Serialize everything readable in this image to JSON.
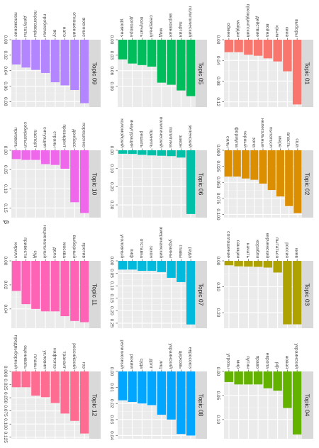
{
  "chart_data": {
    "type": "bar",
    "layout": "faceted-grid",
    "rotation": "rotated-90-clockwise",
    "grid": true,
    "y_axis_label": "β",
    "panels": [
      {
        "title": "Topic 01",
        "color": "#F8766D",
        "ylim": [
          0,
          0.13
        ],
        "ticks": [
          0.0,
          0.04,
          0.08,
          0.12
        ],
        "categories": [
          "выборы",
          "киев",
          "крым",
          "война",
          "действие",
          "президентский",
          "майдан",
          "обмен"
        ],
        "values": [
          0.125,
          0.061,
          0.042,
          0.036,
          0.031,
          0.029,
          0.024,
          0.024
        ]
      },
      {
        "title": "Topic 02",
        "color": "#DB8E00",
        "ylim": [
          0,
          0.105
        ],
        "ticks": [
          0.0,
          0.025,
          0.05,
          0.075,
          0.1
        ],
        "categories": [
          "сша",
          "власть",
          "мере",
          "пытаться",
          "нелегальные",
          "зона",
          "черный",
          "формула",
          "силы"
        ],
        "values": [
          0.098,
          0.087,
          0.072,
          0.062,
          0.052,
          0.046,
          0.044,
          0.041,
          0.041
        ]
      },
      {
        "title": "Topic 03",
        "color": "#AEA200",
        "ylim": [
          0,
          0.26
        ],
        "ticks": [
          0.0,
          0.1,
          0.2
        ],
        "categories": [
          "киев",
          "россия",
          "пытаться",
          "керченский",
          "корабли",
          "начать",
          "санкции",
          "соглашение"
        ],
        "values": [
          0.245,
          0.245,
          0.045,
          0.026,
          0.023,
          0.022,
          0.021,
          0.017
        ]
      },
      {
        "title": "Topic 04",
        "color": "#64B200",
        "ylim": [
          0,
          0.14
        ],
        "ticks": [
          0.0,
          0.05,
          0.1
        ],
        "categories": [
          "украинский",
          "новая",
          "рф",
          "европа",
          "право",
          "путин",
          "мир",
          "угрозы"
        ],
        "values": [
          0.131,
          0.076,
          0.04,
          0.035,
          0.027,
          0.027,
          0.027,
          0.022
        ]
      },
      {
        "title": "Topic 05",
        "color": "#00BD5C",
        "ylim": [
          0,
          0.13
        ],
        "ticks": [
          0.0,
          0.03,
          0.06,
          0.09
        ],
        "categories": [
          "политический",
          "партия",
          "верховная",
          "мид",
          "северный",
          "получать",
          "договора",
          "уровень"
        ],
        "values": [
          0.109,
          0.098,
          0.087,
          0.083,
          0.052,
          0.049,
          0.046,
          0.038
        ]
      },
      {
        "title": "Topic 06",
        "color": "#00C1A7",
        "ylim": [
          0,
          0.37
        ],
        "ticks": [
          0.0,
          0.1,
          0.2,
          0.3
        ],
        "categories": [
          "зеленский",
          "закон",
          "политика",
          "политический",
          "принять",
          "решать",
          "инаугурация",
          "коломойский"
        ],
        "values": [
          0.35,
          0.04,
          0.032,
          0.03,
          0.028,
          0.025,
          0.02,
          0.019
        ]
      },
      {
        "title": "Topic 07",
        "color": "#00BADE",
        "ylim": [
          0,
          0.27
        ],
        "ticks": [
          0.0,
          0.05,
          0.1,
          0.15,
          0.2,
          0.25
        ],
        "categories": [
          "рада",
          "главы",
          "украины",
          "американский",
          "закон",
          "отставка",
          "пиф",
          "уголовный"
        ],
        "values": [
          0.255,
          0.085,
          0.068,
          0.045,
          0.04,
          0.04,
          0.035,
          0.035
        ]
      },
      {
        "title": "Topic 08",
        "color": "#00A6FF",
        "ylim": [
          0,
          0.042
        ],
        "ticks": [
          0.0,
          0.01,
          0.02,
          0.03,
          0.04
        ],
        "categories": [
          "евросоюз",
          "церковь",
          "украинский",
          "лиц",
          "долг",
          "суда",
          "режим",
          "религиозный"
        ],
        "values": [
          0.04,
          0.039,
          0.03,
          0.027,
          0.021,
          0.02,
          0.019,
          0.018
        ]
      },
      {
        "title": "Topic 09",
        "color": "#B385FF",
        "ylim": [
          0,
          0.087
        ],
        "ticks": [
          0.0,
          0.02,
          0.04,
          0.06,
          0.08
        ],
        "categories": [
          "военные",
          "отношения",
          "нато",
          "всу",
          "проблемы",
          "переговоры",
          "депутаты",
          "положение"
        ],
        "values": [
          0.082,
          0.065,
          0.059,
          0.055,
          0.043,
          0.039,
          0.036,
          0.032
        ]
      },
      {
        "title": "Topic 10",
        "color": "#EF67EB",
        "ylim": [
          0,
          0.175
        ],
        "ticks": [
          0.0,
          0.05,
          0.1,
          0.15
        ],
        "categories": [
          "порошенко",
          "донбасс",
          "президент",
          "страны",
          "ситуация",
          "паспорт",
          "собираться",
          "призвать"
        ],
        "values": [
          0.163,
          0.135,
          0.048,
          0.038,
          0.036,
          0.025,
          0.025,
          0.023
        ]
      },
      {
        "title": "Topic 11",
        "color": "#FF63B6",
        "ylim": [
          0,
          0.056
        ],
        "ticks": [
          0.0,
          0.02,
          0.04
        ],
        "categories": [
          "против",
          "выборный",
          "москва",
          "дела",
          "национальный",
          "суд",
          "привести",
          "кирилл"
        ],
        "values": [
          0.051,
          0.05,
          0.046,
          0.042,
          0.042,
          0.04,
          0.036,
          0.025
        ]
      },
      {
        "title": "Topic 12",
        "color": "#FF6C91",
        "ylim": [
          0,
          0.128
        ],
        "ticks": [
          0.0,
          0.025,
          0.05,
          0.075,
          0.1,
          0.125
        ],
        "categories": [
          "газ",
          "российский",
          "транзит",
          "нафтогаз",
          "условия",
          "планы",
          "оценивать",
          "предвыборный"
        ],
        "values": [
          0.118,
          0.094,
          0.08,
          0.06,
          0.049,
          0.046,
          0.03,
          0.03
        ]
      }
    ]
  }
}
